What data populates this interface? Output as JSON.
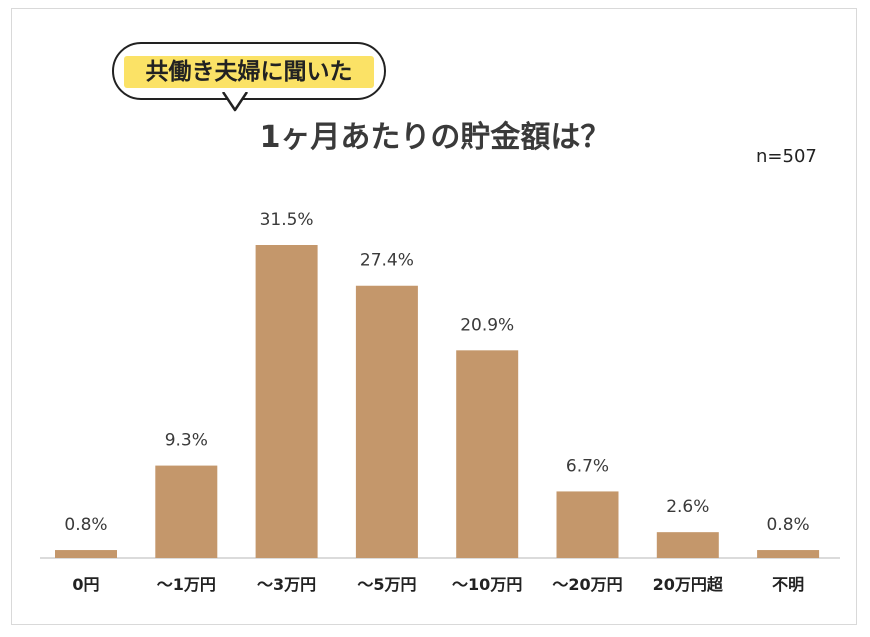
{
  "callout": "共働き夫婦に聞いた",
  "sample_size": "n=507",
  "chart_data": {
    "type": "bar",
    "title": "1ヶ月あたりの貯金額は？",
    "categories": [
      "0円",
      "～1万円",
      "～3万円",
      "～5万円",
      "～10万円",
      "～20万円",
      "20万円超",
      "不明"
    ],
    "values": [
      0.8,
      9.3,
      31.5,
      27.4,
      20.9,
      6.7,
      2.6,
      0.8
    ],
    "value_labels": [
      "0.8%",
      "9.3%",
      "31.5%",
      "27.4%",
      "20.9%",
      "6.7%",
      "2.6%",
      "0.8%"
    ],
    "unit": "%",
    "ylim": [
      0,
      31.5
    ],
    "grid": false,
    "bar_color": "#c4976b",
    "highlight_color": "#fbe266"
  }
}
